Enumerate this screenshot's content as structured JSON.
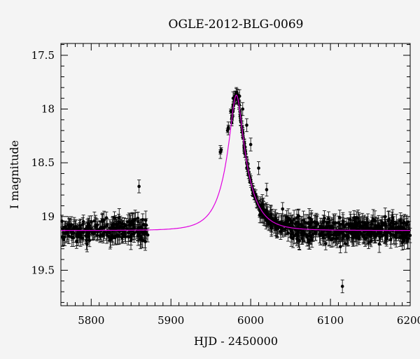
{
  "chart_data": {
    "type": "scatter",
    "title": "OGLE-2012-BLG-0069",
    "xlabel": "HJD - 2450000",
    "ylabel": "I magnitude",
    "xlim": [
      5762,
      6200
    ],
    "ylim": [
      19.83,
      17.39
    ],
    "y_inverted": true,
    "x_ticks": [
      5800,
      5900,
      6000,
      6100,
      6200
    ],
    "y_ticks": [
      17.5,
      18,
      18.5,
      19,
      19.5
    ],
    "x_tick_labels": [
      "5800",
      "5900",
      "6000",
      "6100",
      "6200"
    ],
    "y_tick_labels": [
      "17.5",
      "18",
      "18.5",
      "19",
      "19.5"
    ],
    "grid": false,
    "model": {
      "baseline_mag": 19.13,
      "peak_mag": 17.87,
      "t0": 5982,
      "colors": {
        "line": "#e000e0"
      }
    },
    "series": [
      {
        "type": "scatter_with_errorbars",
        "x_sample": [
          5765,
          5780,
          5800,
          5820,
          5840,
          5860,
          5869,
          5962,
          5972,
          5978,
          5982,
          5986,
          5990,
          5995,
          6000,
          6010,
          6020,
          6040,
          6060,
          6080,
          6100,
          6115,
          6130,
          6160,
          6198
        ],
        "y_sample": [
          19.15,
          19.1,
          19.12,
          19.08,
          19.1,
          18.72,
          19.08,
          18.4,
          18.18,
          17.9,
          17.86,
          17.88,
          18.0,
          18.15,
          18.33,
          18.55,
          18.75,
          18.93,
          19.0,
          19.05,
          19.1,
          19.65,
          19.15,
          19.12,
          19.14
        ]
      }
    ],
    "colors": {
      "points": "#000000",
      "background": "#f4f4f4"
    }
  }
}
